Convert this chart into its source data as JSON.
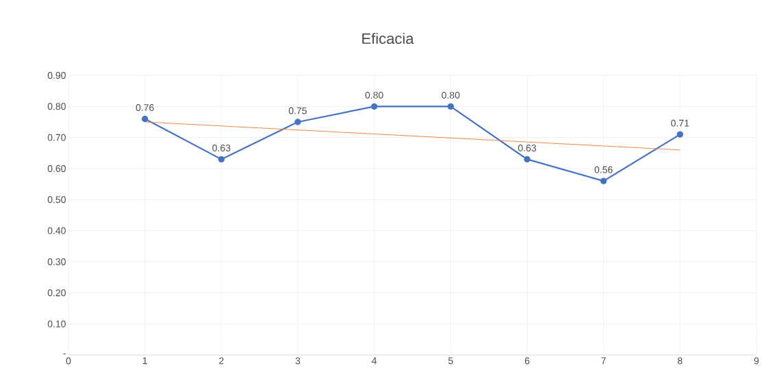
{
  "chart_data": {
    "type": "line",
    "title": "Eficacia",
    "series": [
      {
        "color": "#4472c4",
        "x": [
          1,
          2,
          3,
          4,
          5,
          6,
          7,
          8
        ],
        "values": [
          0.76,
          0.63,
          0.75,
          0.8,
          0.8,
          0.63,
          0.56,
          0.71
        ],
        "value_labels": [
          "0.76",
          "0.63",
          "0.75",
          "0.80",
          "0.80",
          "0.63",
          "0.56",
          "0.71"
        ],
        "marker": "circle"
      },
      {
        "color": "#ed7d31",
        "x": [
          1,
          8
        ],
        "values": [
          0.75,
          0.66
        ],
        "marker": "none"
      }
    ],
    "xlim": [
      0,
      9
    ],
    "ylim": [
      0,
      0.9
    ],
    "xticks": [
      0,
      1,
      2,
      3,
      4,
      5,
      6,
      7,
      8,
      9
    ],
    "yticks": [
      {
        "value": 0,
        "label": "-"
      },
      {
        "value": 0.1,
        "label": "0.10"
      },
      {
        "value": 0.2,
        "label": "0.20"
      },
      {
        "value": 0.3,
        "label": "0.30"
      },
      {
        "value": 0.4,
        "label": "0.40"
      },
      {
        "value": 0.5,
        "label": "0.50"
      },
      {
        "value": 0.6,
        "label": "0.60"
      },
      {
        "value": 0.7,
        "label": "0.70"
      },
      {
        "value": 0.8,
        "label": "0.80"
      },
      {
        "value": 0.9,
        "label": "0.90"
      }
    ],
    "grid": true,
    "line_style": "solid"
  }
}
